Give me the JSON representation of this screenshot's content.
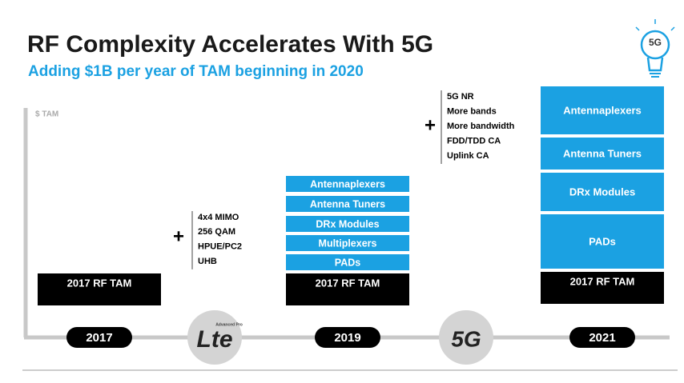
{
  "header": {
    "title": "RF Complexity Accelerates With 5G",
    "subtitle": "Adding $1B per year of TAM beginning in 2020"
  },
  "axis_label": "$ TAM",
  "columns": [
    {
      "year": "2017",
      "base": "2017 RF TAM",
      "segments": []
    },
    {
      "year": "2019",
      "base": "2017 RF TAM",
      "segments": [
        "Antennaplexers",
        "Antenna Tuners",
        "DRx Modules",
        "Multiplexers",
        "PADs"
      ]
    },
    {
      "year": "2021",
      "base": "2017 RF TAM",
      "segments": [
        "Antennaplexers",
        "Antenna Tuners",
        "DRx Modules",
        "PADs"
      ]
    }
  ],
  "transitions": [
    {
      "logo": "Lte",
      "logo_sub": "Advanced Pro",
      "features": [
        "4x4 MIMO",
        "256 QAM",
        "HPUE/PC2",
        "UHB"
      ]
    },
    {
      "logo": "5G",
      "features": [
        "5G NR",
        "More bands",
        "More bandwidth",
        "FDD/TDD CA",
        "Uplink CA"
      ]
    }
  ],
  "icon_label": "5G"
}
